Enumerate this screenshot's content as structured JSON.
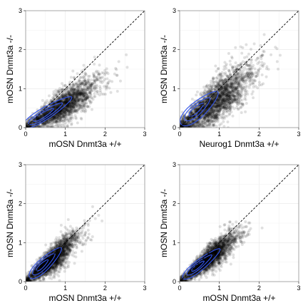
{
  "chart_data": [
    {
      "type": "scatter",
      "xlabel": "mOSN Dnmt3a +/+",
      "ylabel": "mOSN Dnmt3a -/-",
      "xlim": [
        0,
        3
      ],
      "ylim": [
        0,
        3
      ],
      "xticks": [
        0,
        1,
        2,
        3
      ],
      "yticks": [
        0,
        1,
        2,
        3
      ],
      "x_tick_labels": [
        "0",
        "1",
        "2",
        "3"
      ],
      "y_tick_labels": [
        "0",
        "1",
        "2",
        "3"
      ],
      "grid": true,
      "reference_line": {
        "style": "dashed",
        "slope": 1,
        "intercept": 0
      },
      "point_color": "#000000",
      "point_alpha": 0.12,
      "contour_color": "#3355ee",
      "cloud": {
        "n": 2400,
        "x_center": 0.9,
        "x_sd": 0.45,
        "slope": 0.6,
        "y_sd": 0.18
      },
      "contours": [
        {
          "cx": 0.55,
          "cy": 0.4,
          "major": 0.72,
          "minor": 0.15,
          "angle_deg": 32
        },
        {
          "cx": 0.5,
          "cy": 0.36,
          "major": 0.5,
          "minor": 0.1,
          "angle_deg": 32
        },
        {
          "cx": 0.45,
          "cy": 0.33,
          "major": 0.3,
          "minor": 0.06,
          "angle_deg": 32
        }
      ]
    },
    {
      "type": "scatter",
      "xlabel": "Neurog1 Dnmt3a +/+",
      "ylabel": "mOSN Dnmt3a -/-",
      "xlim": [
        0,
        3
      ],
      "ylim": [
        0,
        3
      ],
      "xticks": [
        0,
        1,
        2,
        3
      ],
      "yticks": [
        0,
        1,
        2,
        3
      ],
      "x_tick_labels": [
        "0",
        "1",
        "2",
        "3"
      ],
      "y_tick_labels": [
        "0",
        "1",
        "2",
        "3"
      ],
      "grid": true,
      "reference_line": {
        "style": "dashed",
        "slope": 1,
        "intercept": 0
      },
      "point_color": "#000000",
      "point_alpha": 0.12,
      "contour_color": "#3355ee",
      "cloud": {
        "n": 2600,
        "x_center": 0.85,
        "x_sd": 0.5,
        "slope": 0.75,
        "y_sd": 0.25
      },
      "contours": [
        {
          "cx": 0.5,
          "cy": 0.5,
          "major": 0.62,
          "minor": 0.2,
          "angle_deg": 42
        },
        {
          "cx": 0.45,
          "cy": 0.48,
          "major": 0.42,
          "minor": 0.13,
          "angle_deg": 42
        },
        {
          "cx": 0.42,
          "cy": 0.46,
          "major": 0.24,
          "minor": 0.07,
          "angle_deg": 42
        }
      ]
    },
    {
      "type": "scatter",
      "xlabel": "mOSN Dnmt3a +/+",
      "ylabel": "mOSN Dnmt3a -/-",
      "xlim": [
        0,
        3
      ],
      "ylim": [
        0,
        3
      ],
      "xticks": [
        0,
        1,
        2,
        3
      ],
      "yticks": [
        0,
        1,
        2,
        3
      ],
      "x_tick_labels": [
        "0",
        "1",
        "2",
        "3"
      ],
      "y_tick_labels": [
        "0",
        "1",
        "2",
        "3"
      ],
      "grid": true,
      "reference_line": {
        "style": "dashed",
        "slope": 1,
        "intercept": 0
      },
      "point_color": "#000000",
      "point_alpha": 0.12,
      "contour_color": "#3355ee",
      "cloud": {
        "n": 2400,
        "x_center": 0.65,
        "x_sd": 0.32,
        "slope": 0.85,
        "y_sd": 0.17
      },
      "contours": [
        {
          "cx": 0.5,
          "cy": 0.48,
          "major": 0.55,
          "minor": 0.15,
          "angle_deg": 44
        },
        {
          "cx": 0.46,
          "cy": 0.45,
          "major": 0.38,
          "minor": 0.1,
          "angle_deg": 44
        },
        {
          "cx": 0.42,
          "cy": 0.42,
          "major": 0.2,
          "minor": 0.05,
          "angle_deg": 44
        }
      ]
    },
    {
      "type": "scatter",
      "xlabel": "mOSN Dnmt3a +/+",
      "ylabel": "mOSN Dnmt3a -/-",
      "xlim": [
        0,
        3
      ],
      "ylim": [
        0,
        3
      ],
      "xticks": [
        0,
        1,
        2,
        3
      ],
      "yticks": [
        0,
        1,
        2,
        3
      ],
      "x_tick_labels": [
        "0",
        "1",
        "2",
        "3"
      ],
      "y_tick_labels": [
        "0",
        "1",
        "2",
        "3"
      ],
      "grid": true,
      "reference_line": {
        "style": "dashed",
        "slope": 1,
        "intercept": 0
      },
      "point_color": "#000000",
      "point_alpha": 0.12,
      "contour_color": "#3355ee",
      "cloud": {
        "n": 2400,
        "x_center": 0.75,
        "x_sd": 0.35,
        "slope": 0.8,
        "y_sd": 0.15
      },
      "contours": [
        {
          "cx": 0.55,
          "cy": 0.46,
          "major": 0.6,
          "minor": 0.13,
          "angle_deg": 39
        },
        {
          "cx": 0.5,
          "cy": 0.43,
          "major": 0.4,
          "minor": 0.08,
          "angle_deg": 39
        },
        {
          "cx": 0.46,
          "cy": 0.4,
          "major": 0.2,
          "minor": 0.045,
          "angle_deg": 39
        }
      ]
    }
  ]
}
